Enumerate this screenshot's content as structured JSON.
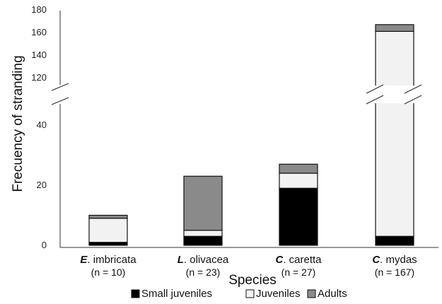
{
  "chart_data": {
    "type": "bar",
    "stacked": true,
    "xlabel": "Species",
    "ylabel": "Frecuency of stranding",
    "axis_break": {
      "from": 50,
      "to": 115
    },
    "ylim": [
      0,
      180
    ],
    "lower_ticks": [
      "0",
      "20",
      "40"
    ],
    "upper_ticks": [
      "120",
      "140",
      "160",
      "180"
    ],
    "categories": [
      {
        "genus": "E",
        "species": ". imbricata",
        "n_label": "(n = 10)"
      },
      {
        "genus": "L",
        "species": ". olivacea",
        "n_label": "(n = 23)"
      },
      {
        "genus": "C",
        "species": ". caretta",
        "n_label": "(n = 27)"
      },
      {
        "genus": "C",
        "species": ". mydas",
        "n_label": "(n = 167)"
      }
    ],
    "series": [
      {
        "name": "Small juveniles",
        "color": "#000000",
        "values": [
          1,
          3,
          19,
          3
        ]
      },
      {
        "name": "Juveniles",
        "color": "#f2f2f2",
        "values": [
          8,
          2,
          5,
          158
        ]
      },
      {
        "name": "Adults",
        "color": "#8a8a8a",
        "values": [
          1,
          18,
          3,
          6
        ]
      }
    ],
    "legend_position": "bottom-center",
    "grid": false
  }
}
